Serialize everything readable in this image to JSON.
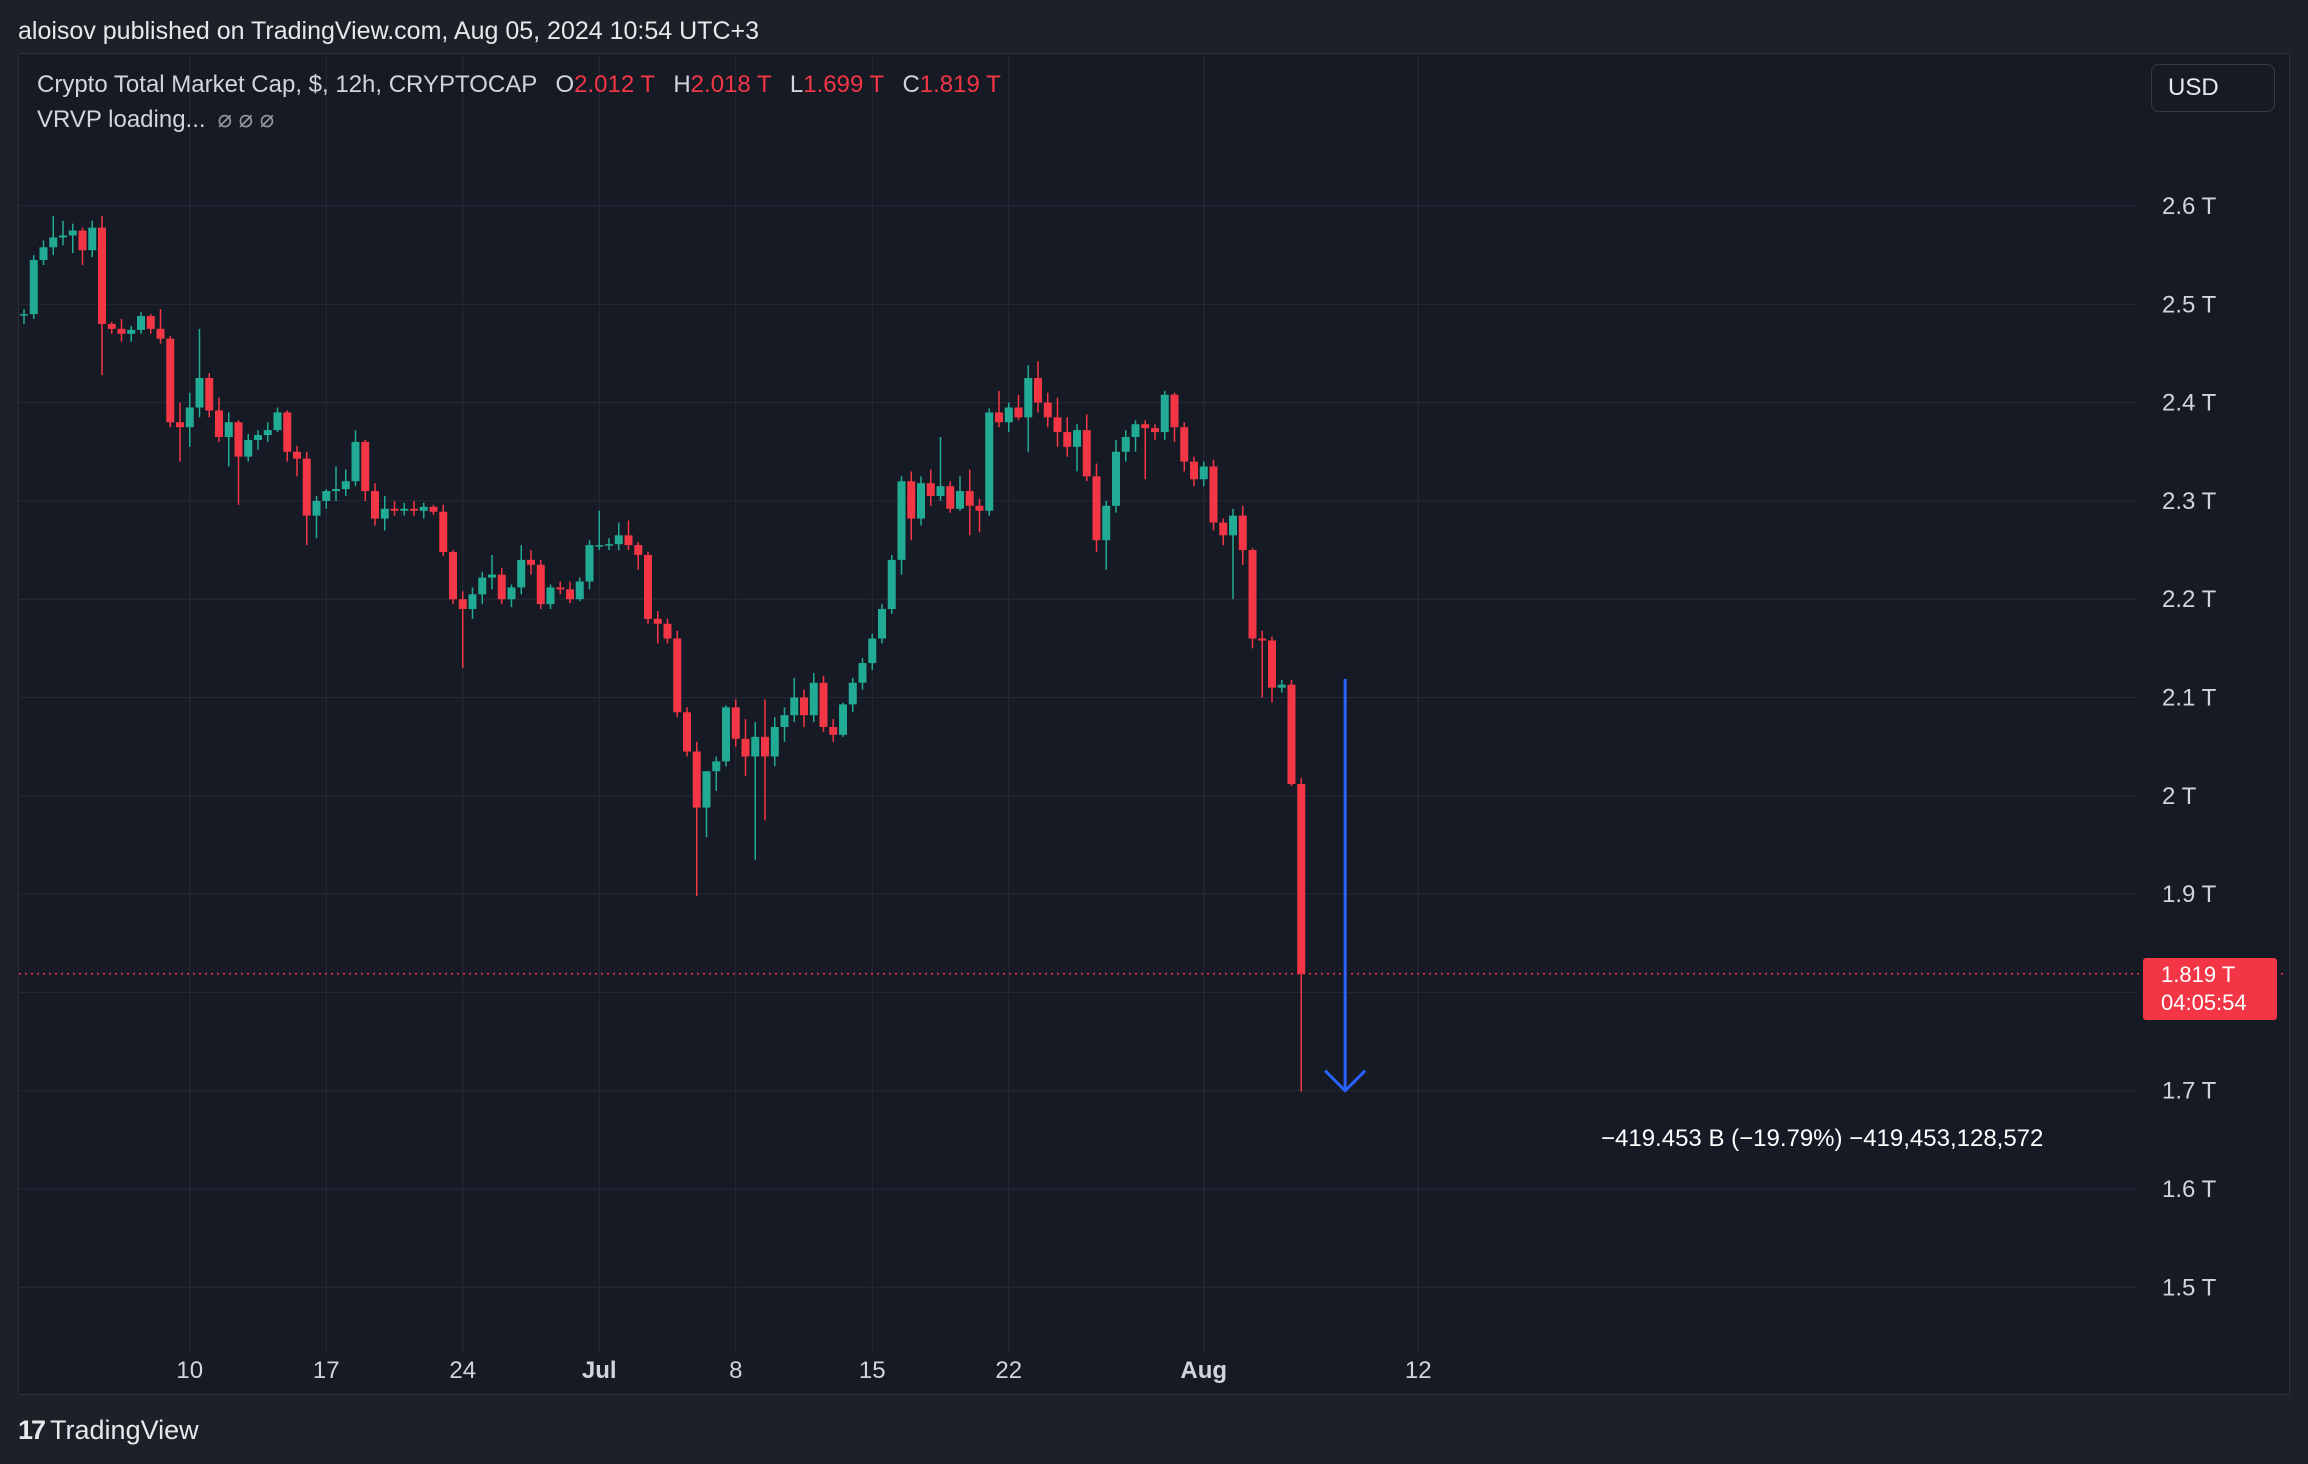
{
  "header": {
    "published": "aloisov published on TradingView.com, Aug 05, 2024 10:54 UTC+3"
  },
  "legend": {
    "symbol": "Crypto Total Market Cap, $, 12h, CRYPTOCAP",
    "o_label": "O",
    "o_value": "2.012 T",
    "h_label": "H",
    "h_value": "2.018 T",
    "l_label": "L",
    "l_value": "1.699 T",
    "c_label": "C",
    "c_value": "1.819 T"
  },
  "vrvp": {
    "text": "VRVP loading...",
    "icons": "⌀ ⌀ ⌀"
  },
  "currency": {
    "label": "USD"
  },
  "price_tag": {
    "price": "1.819 T",
    "countdown": "04:05:54"
  },
  "measure": {
    "label": "−419.453 B (−19.79%) −419,453,128,572"
  },
  "footer": {
    "logo": "17",
    "brand": "TradingView"
  },
  "colors": {
    "up": "#22ab94",
    "down": "#f23645",
    "grid": "#262a36",
    "text": "#d1d4dc",
    "arrow": "#2962ff",
    "bg": "#161a25"
  },
  "chart_data": {
    "type": "candlestick",
    "interval": "12h",
    "y_unit": "T",
    "y_ticks": [
      {
        "label": "2.6 T",
        "value": 2.6
      },
      {
        "label": "2.5 T",
        "value": 2.5
      },
      {
        "label": "2.4 T",
        "value": 2.4
      },
      {
        "label": "2.3 T",
        "value": 2.3
      },
      {
        "label": "2.2 T",
        "value": 2.2
      },
      {
        "label": "2.1 T",
        "value": 2.1
      },
      {
        "label": "2 T",
        "value": 2.0
      },
      {
        "label": "1.9 T",
        "value": 1.9
      },
      {
        "label": "1.7 T",
        "value": 1.7
      },
      {
        "label": "1.6 T",
        "value": 1.6
      },
      {
        "label": "1.5 T",
        "value": 1.5
      }
    ],
    "x_ticks": [
      {
        "label": "10",
        "index": 17,
        "bold": false
      },
      {
        "label": "17",
        "index": 31,
        "bold": false
      },
      {
        "label": "24",
        "index": 45,
        "bold": false
      },
      {
        "label": "Jul",
        "index": 59,
        "bold": true
      },
      {
        "label": "8",
        "index": 73,
        "bold": false
      },
      {
        "label": "15",
        "index": 87,
        "bold": false
      },
      {
        "label": "22",
        "index": 101,
        "bold": false
      },
      {
        "label": "Aug",
        "index": 121,
        "bold": true
      },
      {
        "label": "12",
        "index": 143,
        "bold": false
      }
    ],
    "candles": [
      [
        2.49,
        2.495,
        2.48,
        2.49
      ],
      [
        2.49,
        2.55,
        2.485,
        2.545
      ],
      [
        2.545,
        2.565,
        2.54,
        2.558
      ],
      [
        2.558,
        2.59,
        2.55,
        2.568
      ],
      [
        2.568,
        2.585,
        2.56,
        2.57
      ],
      [
        2.57,
        2.582,
        2.552,
        2.575
      ],
      [
        2.575,
        2.578,
        2.54,
        2.555
      ],
      [
        2.555,
        2.585,
        2.548,
        2.578
      ],
      [
        2.578,
        2.59,
        2.428,
        2.48
      ],
      [
        2.48,
        2.482,
        2.47,
        2.475
      ],
      [
        2.475,
        2.485,
        2.462,
        2.47
      ],
      [
        2.47,
        2.478,
        2.462,
        2.474
      ],
      [
        2.474,
        2.492,
        2.47,
        2.488
      ],
      [
        2.488,
        2.49,
        2.47,
        2.475
      ],
      [
        2.475,
        2.495,
        2.46,
        2.465
      ],
      [
        2.465,
        2.468,
        2.375,
        2.38
      ],
      [
        2.38,
        2.4,
        2.34,
        2.375
      ],
      [
        2.375,
        2.41,
        2.355,
        2.395
      ],
      [
        2.395,
        2.475,
        2.385,
        2.425
      ],
      [
        2.425,
        2.43,
        2.385,
        2.392
      ],
      [
        2.392,
        2.405,
        2.36,
        2.365
      ],
      [
        2.365,
        2.39,
        2.335,
        2.38
      ],
      [
        2.38,
        2.382,
        2.296,
        2.345
      ],
      [
        2.345,
        2.368,
        2.34,
        2.362
      ],
      [
        2.362,
        2.372,
        2.352,
        2.367
      ],
      [
        2.367,
        2.38,
        2.36,
        2.372
      ],
      [
        2.372,
        2.395,
        2.37,
        2.39
      ],
      [
        2.39,
        2.392,
        2.34,
        2.35
      ],
      [
        2.35,
        2.356,
        2.325,
        2.343
      ],
      [
        2.343,
        2.35,
        2.255,
        2.285
      ],
      [
        2.285,
        2.305,
        2.262,
        2.3
      ],
      [
        2.3,
        2.312,
        2.292,
        2.31
      ],
      [
        2.31,
        2.335,
        2.3,
        2.312
      ],
      [
        2.312,
        2.332,
        2.305,
        2.32
      ],
      [
        2.32,
        2.372,
        2.315,
        2.36
      ],
      [
        2.36,
        2.362,
        2.3,
        2.31
      ],
      [
        2.31,
        2.318,
        2.275,
        2.282
      ],
      [
        2.282,
        2.305,
        2.27,
        2.292
      ],
      [
        2.292,
        2.3,
        2.285,
        2.29
      ],
      [
        2.29,
        2.298,
        2.285,
        2.292
      ],
      [
        2.292,
        2.3,
        2.285,
        2.29
      ],
      [
        2.29,
        2.298,
        2.282,
        2.294
      ],
      [
        2.294,
        2.296,
        2.286,
        2.289
      ],
      [
        2.289,
        2.296,
        2.244,
        2.248
      ],
      [
        2.248,
        2.25,
        2.195,
        2.2
      ],
      [
        2.2,
        2.208,
        2.13,
        2.19
      ],
      [
        2.19,
        2.212,
        2.18,
        2.205
      ],
      [
        2.205,
        2.228,
        2.195,
        2.222
      ],
      [
        2.222,
        2.245,
        2.21,
        2.225
      ],
      [
        2.225,
        2.232,
        2.195,
        2.2
      ],
      [
        2.2,
        2.215,
        2.192,
        2.212
      ],
      [
        2.212,
        2.255,
        2.205,
        2.24
      ],
      [
        2.24,
        2.25,
        2.225,
        2.235
      ],
      [
        2.235,
        2.24,
        2.19,
        2.195
      ],
      [
        2.195,
        2.215,
        2.19,
        2.212
      ],
      [
        2.212,
        2.218,
        2.205,
        2.21
      ],
      [
        2.21,
        2.218,
        2.196,
        2.2
      ],
      [
        2.2,
        2.222,
        2.198,
        2.218
      ],
      [
        2.218,
        2.26,
        2.21,
        2.255
      ],
      [
        2.255,
        2.29,
        2.25,
        2.255
      ],
      [
        2.255,
        2.262,
        2.25,
        2.256
      ],
      [
        2.256,
        2.278,
        2.25,
        2.265
      ],
      [
        2.265,
        2.28,
        2.25,
        2.255
      ],
      [
        2.255,
        2.258,
        2.23,
        2.245
      ],
      [
        2.245,
        2.248,
        2.175,
        2.18
      ],
      [
        2.18,
        2.188,
        2.155,
        2.175
      ],
      [
        2.175,
        2.18,
        2.155,
        2.16
      ],
      [
        2.16,
        2.168,
        2.08,
        2.085
      ],
      [
        2.085,
        2.09,
        2.04,
        2.045
      ],
      [
        2.045,
        2.055,
        1.898,
        1.988
      ],
      [
        1.988,
        2.025,
        1.958,
        2.025
      ],
      [
        2.025,
        2.04,
        2.005,
        2.035
      ],
      [
        2.035,
        2.092,
        2.03,
        2.09
      ],
      [
        2.09,
        2.098,
        2.05,
        2.058
      ],
      [
        2.058,
        2.078,
        2.02,
        2.04
      ],
      [
        2.04,
        2.075,
        1.935,
        2.06
      ],
      [
        2.06,
        2.098,
        1.975,
        2.04
      ],
      [
        2.04,
        2.08,
        2.03,
        2.07
      ],
      [
        2.07,
        2.09,
        2.055,
        2.082
      ],
      [
        2.082,
        2.12,
        2.075,
        2.1
      ],
      [
        2.1,
        2.108,
        2.07,
        2.082
      ],
      [
        2.082,
        2.125,
        2.075,
        2.115
      ],
      [
        2.115,
        2.122,
        2.065,
        2.07
      ],
      [
        2.07,
        2.078,
        2.055,
        2.062
      ],
      [
        2.062,
        2.095,
        2.06,
        2.093
      ],
      [
        2.093,
        2.12,
        2.085,
        2.115
      ],
      [
        2.115,
        2.14,
        2.108,
        2.135
      ],
      [
        2.135,
        2.165,
        2.128,
        2.16
      ],
      [
        2.16,
        2.195,
        2.155,
        2.19
      ],
      [
        2.19,
        2.245,
        2.185,
        2.24
      ],
      [
        2.24,
        2.325,
        2.225,
        2.32
      ],
      [
        2.32,
        2.33,
        2.26,
        2.282
      ],
      [
        2.282,
        2.325,
        2.275,
        2.318
      ],
      [
        2.318,
        2.332,
        2.295,
        2.305
      ],
      [
        2.305,
        2.365,
        2.3,
        2.315
      ],
      [
        2.315,
        2.32,
        2.288,
        2.292
      ],
      [
        2.292,
        2.325,
        2.29,
        2.31
      ],
      [
        2.31,
        2.332,
        2.265,
        2.295
      ],
      [
        2.295,
        2.302,
        2.268,
        2.29
      ],
      [
        2.29,
        2.394,
        2.285,
        2.39
      ],
      [
        2.39,
        2.412,
        2.375,
        2.38
      ],
      [
        2.38,
        2.4,
        2.37,
        2.395
      ],
      [
        2.395,
        2.408,
        2.382,
        2.385
      ],
      [
        2.385,
        2.438,
        2.35,
        2.425
      ],
      [
        2.425,
        2.442,
        2.39,
        2.4
      ],
      [
        2.4,
        2.41,
        2.375,
        2.385
      ],
      [
        2.385,
        2.405,
        2.355,
        2.37
      ],
      [
        2.37,
        2.385,
        2.345,
        2.355
      ],
      [
        2.355,
        2.378,
        2.33,
        2.372
      ],
      [
        2.372,
        2.388,
        2.32,
        2.325
      ],
      [
        2.325,
        2.338,
        2.248,
        2.26
      ],
      [
        2.26,
        2.3,
        2.23,
        2.295
      ],
      [
        2.295,
        2.362,
        2.288,
        2.35
      ],
      [
        2.35,
        2.372,
        2.34,
        2.365
      ],
      [
        2.365,
        2.382,
        2.35,
        2.378
      ],
      [
        2.378,
        2.382,
        2.322,
        2.374
      ],
      [
        2.374,
        2.378,
        2.362,
        2.37
      ],
      [
        2.37,
        2.412,
        2.362,
        2.408
      ],
      [
        2.408,
        2.41,
        2.36,
        2.375
      ],
      [
        2.375,
        2.38,
        2.33,
        2.34
      ],
      [
        2.34,
        2.345,
        2.315,
        2.322
      ],
      [
        2.322,
        2.34,
        2.315,
        2.335
      ],
      [
        2.335,
        2.342,
        2.27,
        2.278
      ],
      [
        2.278,
        2.282,
        2.255,
        2.265
      ],
      [
        2.265,
        2.292,
        2.2,
        2.285
      ],
      [
        2.285,
        2.295,
        2.235,
        2.25
      ],
      [
        2.25,
        2.252,
        2.15,
        2.16
      ],
      [
        2.16,
        2.168,
        2.1,
        2.158
      ],
      [
        2.158,
        2.162,
        2.095,
        2.11
      ],
      [
        2.11,
        2.118,
        2.105,
        2.113
      ],
      [
        2.113,
        2.118,
        2.01,
        2.012
      ],
      [
        2.012,
        2.018,
        1.699,
        1.819
      ]
    ],
    "measure": {
      "from_value": 2.119,
      "to_value": 1.7,
      "index_position": 135.5,
      "change": "−419.453 B",
      "change_pct": "−19.79%",
      "change_abs": "−419,453,128,572"
    },
    "last_price": 1.819
  }
}
